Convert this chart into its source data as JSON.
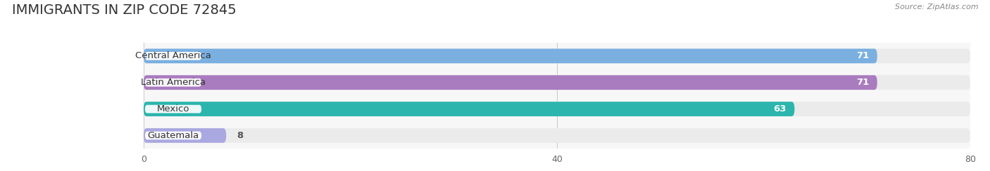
{
  "title": "IMMIGRANTS IN ZIP CODE 72845",
  "source": "Source: ZipAtlas.com",
  "categories": [
    "Central America",
    "Latin America",
    "Mexico",
    "Guatemala"
  ],
  "values": [
    71,
    71,
    63,
    8
  ],
  "bar_colors": [
    "#7aafe0",
    "#a97bbf",
    "#2bb5ad",
    "#aaa8e0"
  ],
  "xlim": [
    0,
    80
  ],
  "xticks": [
    0,
    40,
    80
  ],
  "bg_row_color": "#ebebeb",
  "title_fontsize": 14,
  "label_fontsize": 9.5,
  "value_fontsize": 9.5,
  "source_fontsize": 8
}
